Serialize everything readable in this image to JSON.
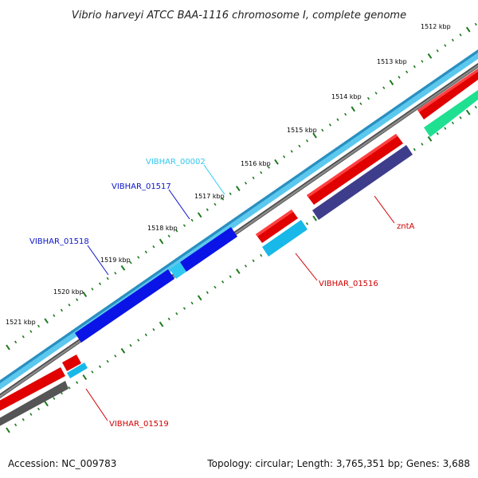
{
  "title": "Vibrio harveyi ATCC BAA-1116 chromosome I, complete genome",
  "colors": {
    "tick": "#1e7a1e",
    "outer_band": "#5cc8ee",
    "outer_band_edge": "#2a8fc0",
    "inner_line": "#7a7a7a",
    "inner_line_edge": "#4a4a4a",
    "gene_blue": "#0a14e6",
    "gene_red": "#e00000",
    "gene_cyan": "#18b8e8",
    "gene_navy": "#3e3d8c",
    "gene_green": "#1ee090",
    "gene_grey": "#555555"
  },
  "scale_labels": [
    "1512 kbp",
    "1513 kbp",
    "1514 kbp",
    "1515 kbp",
    "1516 kbp",
    "1517 kbp",
    "1518 kbp",
    "1519 kbp",
    "1520 kbp",
    "1521 kbp"
  ],
  "gene_labels": [
    {
      "name": "VIBHAR_00002",
      "color": "#30c8f0"
    },
    {
      "name": "VIBHAR_01517",
      "color": "#0a14c8"
    },
    {
      "name": "VIBHAR_01518",
      "color": "#0a14c8"
    },
    {
      "name": "zntA",
      "color": "#d00000"
    },
    {
      "name": "VIBHAR_01516",
      "color": "#d00000"
    },
    {
      "name": "VIBHAR_01519",
      "color": "#d00000"
    }
  ],
  "footer": {
    "accession": "Accession: NC_009783",
    "stats": "Topology: circular; Length: 3,765,351 bp; Genes: 3,688"
  }
}
